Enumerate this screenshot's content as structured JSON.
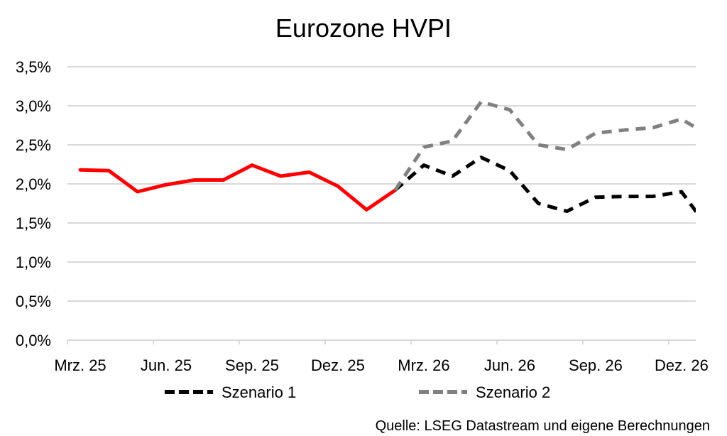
{
  "chart_data": {
    "type": "line",
    "title": "Eurozone HVPI",
    "categories": [
      "Mrz. 25",
      "Apr. 25",
      "Mai. 25",
      "Jun. 25",
      "Jul. 25",
      "Aug. 25",
      "Sep. 25",
      "Okt. 25",
      "Nov. 25",
      "Dez. 25",
      "Jan. 26",
      "Feb. 26",
      "Mrz. 26",
      "Apr. 26",
      "Mai. 26",
      "Jun. 26",
      "Jul. 26",
      "Aug. 26",
      "Sep. 26",
      "Okt. 26",
      "Nov. 26",
      "Dez. 26",
      "Jan. 27"
    ],
    "x_tick_labels": [
      "Mrz. 25",
      "Jun. 25",
      "Sep. 25",
      "Dez. 25",
      "Mrz. 26",
      "Jun. 26",
      "Sep. 26",
      "Dez. 26"
    ],
    "y_tick_labels": [
      "0,0%",
      "0,5%",
      "1,0%",
      "1,5%",
      "2,0%",
      "2,5%",
      "3,0%",
      "3,5%"
    ],
    "ylim": [
      0,
      3.5
    ],
    "y_unit": "%",
    "grid": "horizontal",
    "legend_position": "bottom",
    "series": [
      {
        "color": "#ff0000",
        "dash": "solid",
        "values": [
          2.18,
          2.17,
          1.9,
          1.99,
          2.05,
          2.05,
          2.24,
          2.1,
          2.15,
          1.97,
          1.67,
          1.92,
          null,
          null,
          null,
          null,
          null,
          null,
          null,
          null,
          null,
          null,
          null
        ]
      },
      {
        "name": "Szenario 1",
        "color": "#000000",
        "dash": "dashed",
        "values": [
          null,
          null,
          null,
          null,
          null,
          null,
          null,
          null,
          null,
          null,
          null,
          1.92,
          2.24,
          2.1,
          2.34,
          2.17,
          1.75,
          1.65,
          1.83,
          1.84,
          1.84,
          1.9,
          1.4
        ]
      },
      {
        "name": "Szenario 2",
        "color": "#808080",
        "dash": "dashed",
        "values": [
          null,
          null,
          null,
          null,
          null,
          null,
          null,
          null,
          null,
          null,
          null,
          1.92,
          2.47,
          2.55,
          3.05,
          2.95,
          2.5,
          2.44,
          2.65,
          2.69,
          2.72,
          2.83,
          2.61
        ]
      }
    ],
    "source": "Quelle: LSEG Datastream und eigene Berechnungen"
  }
}
